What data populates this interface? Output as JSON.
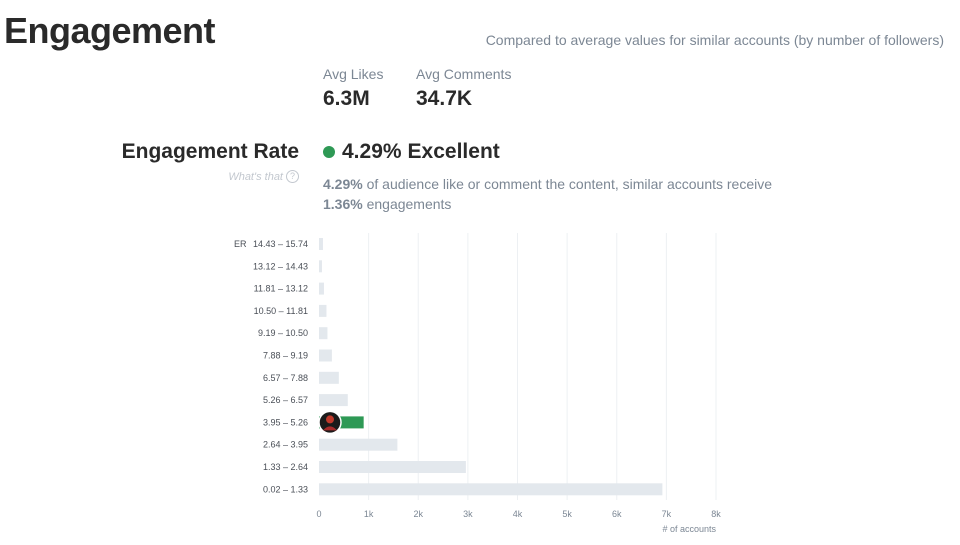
{
  "header": {
    "title": "Engagement",
    "subtitle": "Compared to average values for similar accounts (by number of followers)"
  },
  "stats": {
    "likes_label": "Avg Likes",
    "likes_value": "6.3M",
    "comments_label": "Avg Comments",
    "comments_value": "34.7K"
  },
  "engagement": {
    "label": "Engagement Rate",
    "help_text": "What's that",
    "help_icon": "question-circle-icon",
    "value": "4.29%",
    "rating": "Excellent",
    "rating_color": "#2e9955",
    "desc_value": "4.29%",
    "desc_text_1": " of audience like or comment the content, similar accounts receive",
    "desc_similar": "1.36%",
    "desc_text_2": " engagements"
  },
  "chart_data": {
    "type": "bar",
    "orientation": "horizontal",
    "y_axis_label": "ER",
    "x_axis_label": "# of accounts",
    "categories": [
      "14.43 – 15.74",
      "13.12 – 14.43",
      "11.81 – 13.12",
      "10.50 – 11.81",
      "9.19 – 10.50",
      "7.88 – 9.19",
      "6.57 – 7.88",
      "5.26 – 6.57",
      "3.95 – 5.26",
      "2.64 – 3.95",
      "1.33 – 2.64",
      "0.02 – 1.33"
    ],
    "values": [
      80,
      60,
      100,
      150,
      170,
      260,
      400,
      580,
      900,
      1580,
      2960,
      6920
    ],
    "highlight_index": 8,
    "highlight_color": "#2e9955",
    "bar_color": "#e3e8ed",
    "x_ticks": [
      "0",
      "1k",
      "2k",
      "3k",
      "4k",
      "5k",
      "6k",
      "7k",
      "8k"
    ],
    "xlim": [
      0,
      8000
    ],
    "grid": true
  }
}
